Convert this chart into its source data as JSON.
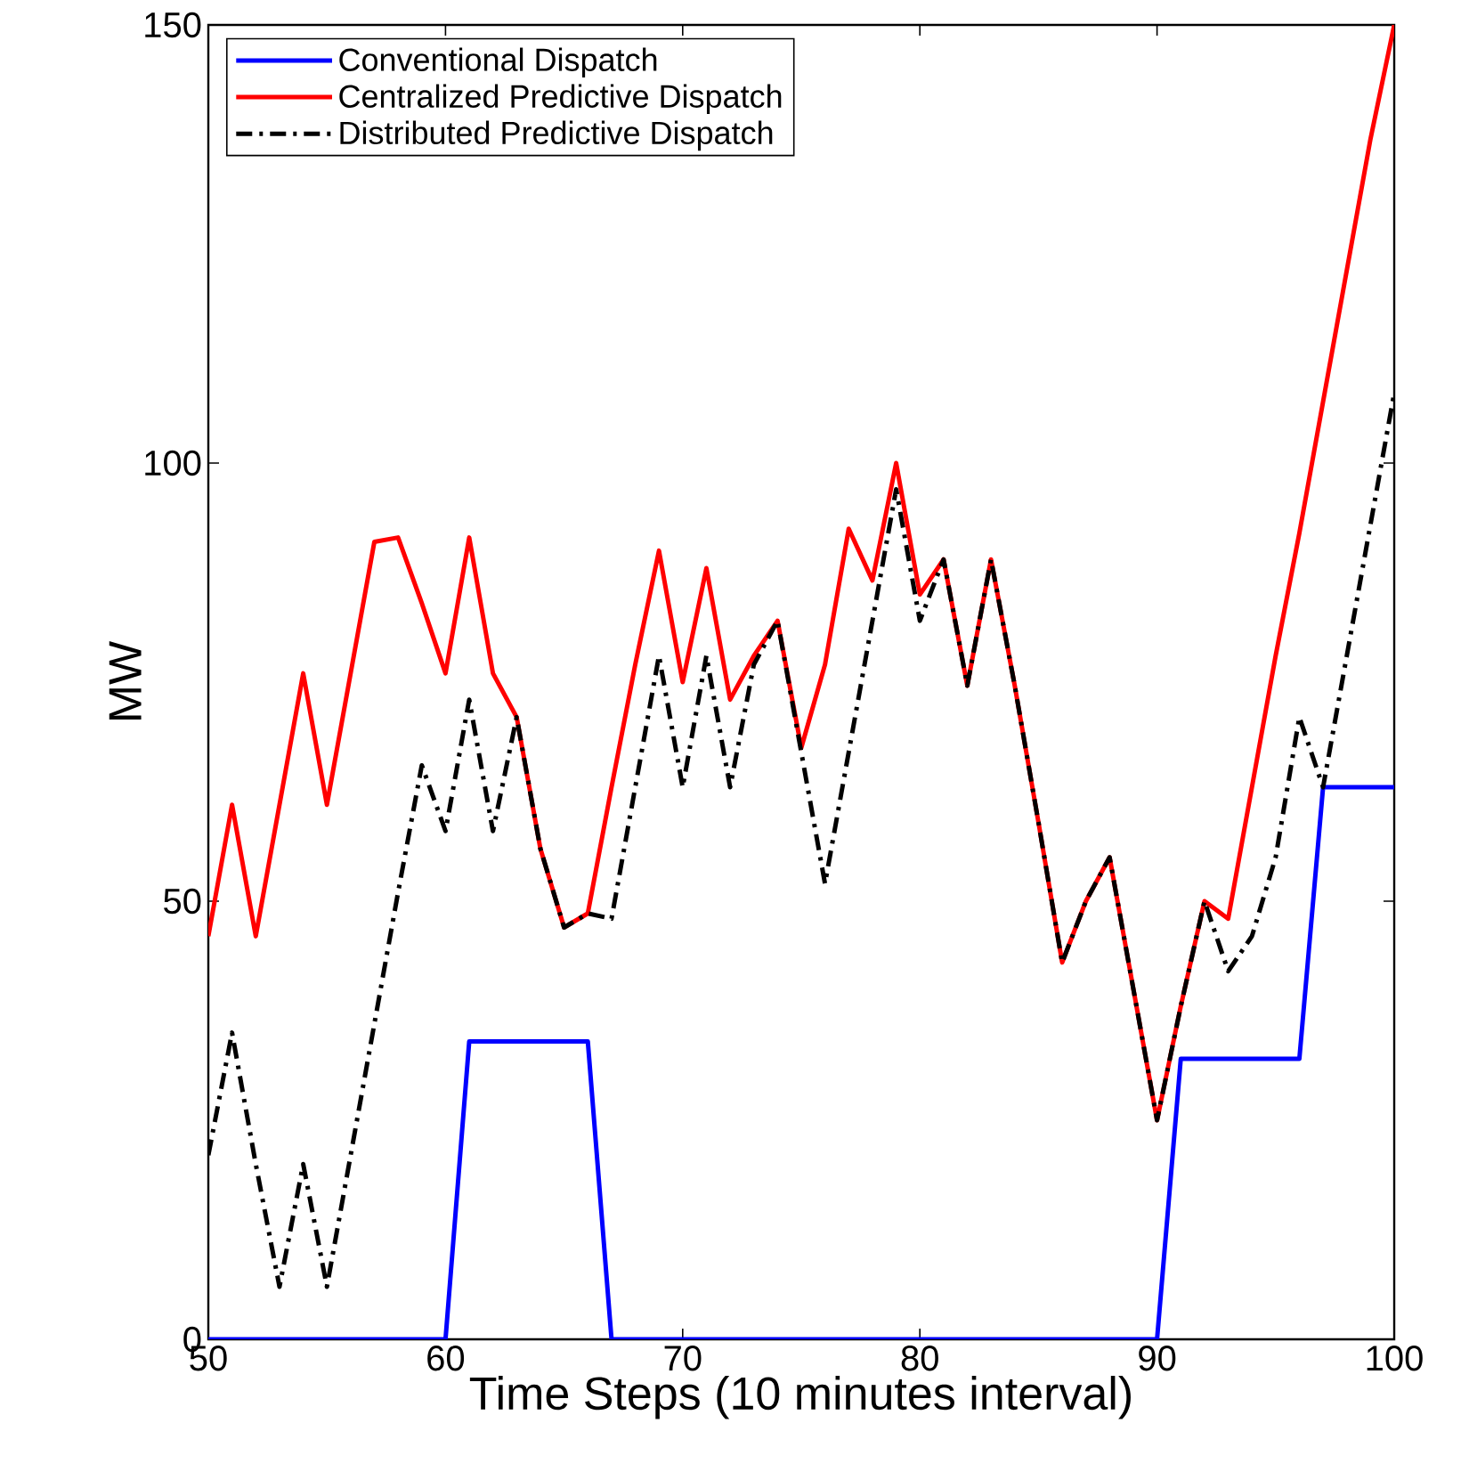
{
  "chart_data": {
    "type": "line",
    "xlabel": "Time Steps (10 minutes interval)",
    "ylabel": "MW",
    "x": [
      50,
      51,
      52,
      53,
      54,
      55,
      56,
      57,
      58,
      59,
      60,
      61,
      62,
      63,
      64,
      65,
      66,
      67,
      68,
      69,
      70,
      71,
      72,
      73,
      74,
      75,
      76,
      77,
      78,
      79,
      80,
      81,
      82,
      83,
      84,
      85,
      86,
      87,
      88,
      89,
      90,
      91,
      92,
      93,
      94,
      95,
      96,
      97,
      98,
      99,
      100
    ],
    "series": [
      {
        "name": "Conventional Dispatch",
        "color": "#0000ff",
        "line_style": "solid",
        "values": [
          0,
          0,
          0,
          0,
          0,
          0,
          0,
          0,
          0,
          0,
          0,
          34,
          34,
          34,
          34,
          34,
          34,
          0,
          0,
          0,
          0,
          0,
          0,
          0,
          0,
          0,
          0,
          0,
          0,
          0,
          0,
          0,
          0,
          0,
          0,
          0,
          0,
          0,
          0,
          0,
          0,
          32,
          32,
          32,
          32,
          32,
          32,
          63,
          63,
          63,
          63
        ]
      },
      {
        "name": "Centralized Predictive Dispatch",
        "color": "#ff0000",
        "line_style": "solid",
        "values": [
          46,
          61,
          46,
          61,
          76,
          61,
          76,
          91,
          91.5,
          84,
          76,
          91.5,
          76,
          71,
          56,
          47,
          48.6,
          63,
          77,
          90,
          75,
          88,
          73,
          78,
          82,
          67.5,
          77,
          92.5,
          86.6,
          100,
          85,
          89,
          74.6,
          89,
          74.6,
          59,
          43,
          50,
          55,
          40,
          25,
          38,
          50,
          48,
          63,
          78,
          92,
          107,
          122,
          137,
          150
        ]
      },
      {
        "name": "Distributed Predictive Dispatch",
        "color": "#000000",
        "line_style": "dashdot",
        "values": [
          21,
          35,
          20,
          6,
          20,
          6,
          21,
          36,
          51,
          65.5,
          58,
          73,
          58,
          71,
          56,
          47,
          48.6,
          48,
          63,
          78,
          63,
          78,
          63,
          77,
          82,
          67,
          52,
          67,
          82,
          97,
          82,
          89,
          74.6,
          89,
          74.6,
          59,
          43,
          50,
          55,
          40,
          25,
          38,
          50,
          42,
          46,
          55,
          71,
          63,
          78,
          93,
          108
        ]
      }
    ],
    "xlim": [
      50,
      100
    ],
    "ylim": [
      0,
      150
    ],
    "xticks": [
      50,
      60,
      70,
      80,
      90,
      100
    ],
    "yticks": [
      0,
      50,
      100,
      150
    ],
    "grid": false,
    "legend": "top left",
    "marker": "none"
  }
}
